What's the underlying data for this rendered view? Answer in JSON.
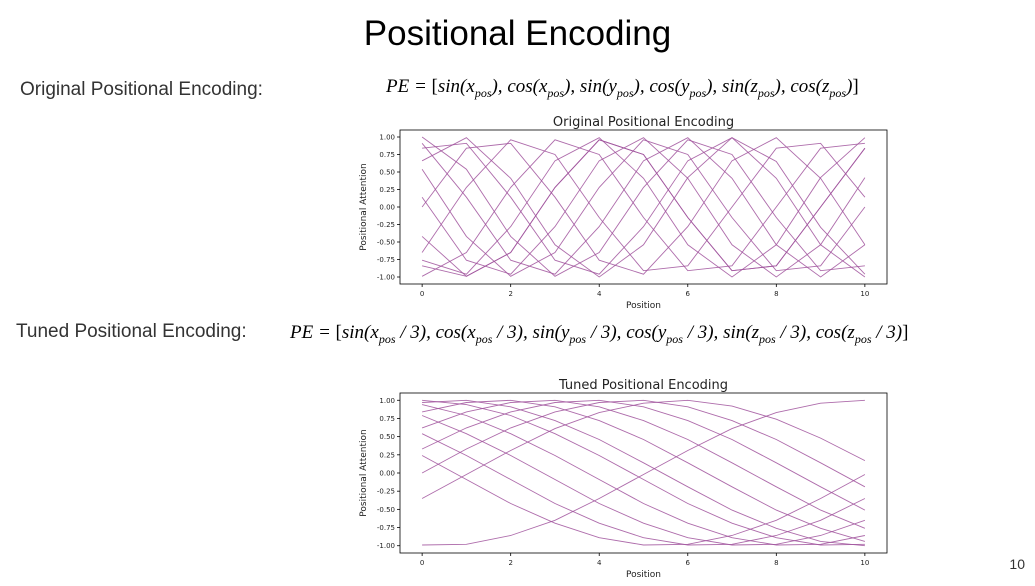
{
  "slide": {
    "title": "Positional Encoding",
    "original_label": "Original Positional Encoding:",
    "tuned_label": "Tuned Positional Encoding:",
    "page_number": "10"
  },
  "formulas": {
    "original": [
      {
        "t": "PE = ",
        "s": "i"
      },
      {
        "t": "[",
        "s": "n"
      },
      {
        "t": "sin(x",
        "s": "i"
      },
      {
        "t": "pos",
        "s": "sub"
      },
      {
        "t": "), ",
        "s": "i"
      },
      {
        "t": "cos(x",
        "s": "i"
      },
      {
        "t": "pos",
        "s": "sub"
      },
      {
        "t": "), ",
        "s": "i"
      },
      {
        "t": "sin(y",
        "s": "i"
      },
      {
        "t": "pos",
        "s": "sub"
      },
      {
        "t": "), ",
        "s": "i"
      },
      {
        "t": "cos(y",
        "s": "i"
      },
      {
        "t": "pos",
        "s": "sub"
      },
      {
        "t": "), ",
        "s": "i"
      },
      {
        "t": "sin(z",
        "s": "i"
      },
      {
        "t": "pos",
        "s": "sub"
      },
      {
        "t": "), ",
        "s": "i"
      },
      {
        "t": "cos(z",
        "s": "i"
      },
      {
        "t": "pos",
        "s": "sub"
      },
      {
        "t": ")",
        "s": "i"
      },
      {
        "t": "]",
        "s": "n"
      }
    ],
    "tuned": [
      {
        "t": "PE = ",
        "s": "i"
      },
      {
        "t": "[",
        "s": "n"
      },
      {
        "t": "sin(x",
        "s": "i"
      },
      {
        "t": "pos",
        "s": "sub"
      },
      {
        "t": " / 3), ",
        "s": "i"
      },
      {
        "t": "cos(x",
        "s": "i"
      },
      {
        "t": "pos",
        "s": "sub"
      },
      {
        "t": " / 3), ",
        "s": "i"
      },
      {
        "t": "sin(y",
        "s": "i"
      },
      {
        "t": "pos",
        "s": "sub"
      },
      {
        "t": " / 3), ",
        "s": "i"
      },
      {
        "t": "cos(y",
        "s": "i"
      },
      {
        "t": "pos",
        "s": "sub"
      },
      {
        "t": " / 3), ",
        "s": "i"
      },
      {
        "t": "sin(z",
        "s": "i"
      },
      {
        "t": "pos",
        "s": "sub"
      },
      {
        "t": " / 3), ",
        "s": "i"
      },
      {
        "t": "cos(z",
        "s": "i"
      },
      {
        "t": "pos",
        "s": "sub"
      },
      {
        "t": " / 3)",
        "s": "i"
      },
      {
        "t": "]",
        "s": "n"
      }
    ]
  },
  "colors": {
    "line": "#a0529c",
    "axis": "#000000",
    "text": "#333333"
  },
  "chart_data": [
    {
      "type": "line",
      "title": "Original Positional Encoding",
      "xlabel": "Position",
      "ylabel": "Positional Attention",
      "x": [
        0,
        1,
        2,
        3,
        4,
        5,
        6,
        7,
        8,
        9,
        10
      ],
      "xlim": [
        -0.5,
        10.5
      ],
      "ylim": [
        -1.1,
        1.1
      ],
      "xticks": [
        "0",
        "2",
        "4",
        "6",
        "8",
        "10"
      ],
      "xtick_values": [
        0,
        2,
        4,
        6,
        8,
        10
      ],
      "yticks": [
        "1.00",
        "0.75",
        "0.50",
        "0.25",
        "0.00",
        "-0.25",
        "-0.50",
        "-0.75",
        "-1.00"
      ],
      "ytick_values": [
        1.0,
        0.75,
        0.5,
        0.25,
        0.0,
        -0.25,
        -0.5,
        -0.75,
        -1.0
      ],
      "grid": false,
      "series": [
        {
          "values": [
            0.0,
            0.84,
            0.91,
            0.14,
            -0.76,
            -0.96,
            -0.28,
            0.66,
            0.99,
            0.41,
            -0.54
          ]
        },
        {
          "values": [
            1.0,
            0.54,
            -0.42,
            -0.99,
            -0.65,
            0.28,
            0.96,
            0.75,
            -0.15,
            -0.91,
            -0.84
          ]
        },
        {
          "values": [
            0.84,
            0.91,
            0.14,
            -0.76,
            -0.96,
            -0.28,
            0.66,
            0.99,
            0.41,
            -0.54,
            -1.0
          ]
        },
        {
          "values": [
            0.54,
            -0.42,
            -0.99,
            -0.65,
            0.28,
            0.96,
            0.75,
            -0.15,
            -0.91,
            -0.84,
            0.0
          ]
        },
        {
          "values": [
            0.91,
            0.14,
            -0.76,
            -0.96,
            -0.28,
            0.66,
            0.99,
            0.41,
            -0.54,
            -1.0,
            -0.54
          ]
        },
        {
          "values": [
            -0.42,
            -0.99,
            -0.65,
            0.28,
            0.96,
            0.75,
            -0.15,
            -0.91,
            -0.84,
            0.0,
            0.84
          ]
        },
        {
          "values": [
            0.14,
            -0.76,
            -0.96,
            -0.28,
            0.66,
            0.99,
            0.41,
            -0.54,
            -1.0,
            -0.54,
            0.42
          ]
        },
        {
          "values": [
            -0.99,
            -0.65,
            0.28,
            0.96,
            0.75,
            -0.15,
            -0.91,
            -0.84,
            0.0,
            0.84,
            0.91
          ]
        },
        {
          "values": [
            -0.76,
            -0.96,
            -0.28,
            0.66,
            0.99,
            0.41,
            -0.54,
            -1.0,
            -0.54,
            0.42,
            0.99
          ]
        },
        {
          "values": [
            -0.65,
            0.28,
            0.96,
            0.75,
            -0.15,
            -0.91,
            -0.84,
            0.0,
            0.84,
            0.91,
            0.14
          ]
        },
        {
          "values": [
            0.66,
            0.99,
            0.41,
            -0.54,
            -1.0,
            -0.54,
            0.42,
            0.99,
            0.65,
            -0.29,
            -0.96
          ]
        },
        {
          "values": [
            -0.84,
            -0.99,
            -0.65,
            0.28,
            0.96,
            0.75,
            -0.15,
            -0.91,
            -0.84,
            0.0,
            0.84
          ]
        }
      ]
    },
    {
      "type": "line",
      "title": "Tuned Positional Encoding",
      "xlabel": "Position",
      "ylabel": "Positional Attention",
      "x": [
        0,
        1,
        2,
        3,
        4,
        5,
        6,
        7,
        8,
        9,
        10
      ],
      "xlim": [
        -0.5,
        10.5
      ],
      "ylim": [
        -1.1,
        1.1
      ],
      "xticks": [
        "0",
        "2",
        "4",
        "6",
        "8",
        "10"
      ],
      "xtick_values": [
        0,
        2,
        4,
        6,
        8,
        10
      ],
      "yticks": [
        "1.00",
        "0.75",
        "0.50",
        "0.25",
        "0.00",
        "-0.25",
        "-0.50",
        "-0.75",
        "-1.00"
      ],
      "ytick_values": [
        1.0,
        0.75,
        0.5,
        0.25,
        0.0,
        -0.25,
        -0.5,
        -0.75,
        -1.0
      ],
      "grid": false,
      "series": [
        {
          "values": [
            0.0,
            0.33,
            0.62,
            0.84,
            0.97,
            1.0,
            0.91,
            0.72,
            0.46,
            0.14,
            -0.19
          ]
        },
        {
          "values": [
            1.0,
            0.94,
            0.79,
            0.54,
            0.24,
            -0.09,
            -0.42,
            -0.69,
            -0.89,
            -0.99,
            -0.98
          ]
        },
        {
          "values": [
            0.33,
            0.62,
            0.84,
            0.97,
            1.0,
            0.91,
            0.72,
            0.46,
            0.14,
            -0.19,
            -0.51
          ]
        },
        {
          "values": [
            0.94,
            0.79,
            0.54,
            0.24,
            -0.09,
            -0.42,
            -0.69,
            -0.89,
            -0.99,
            -0.98,
            -0.86
          ]
        },
        {
          "values": [
            0.62,
            0.84,
            0.97,
            1.0,
            0.91,
            0.72,
            0.46,
            0.14,
            -0.19,
            -0.51,
            -0.76
          ]
        },
        {
          "values": [
            0.79,
            0.54,
            0.24,
            -0.09,
            -0.42,
            -0.69,
            -0.89,
            -0.99,
            -0.98,
            -0.86,
            -0.65
          ]
        },
        {
          "values": [
            0.84,
            0.97,
            1.0,
            0.91,
            0.72,
            0.46,
            0.14,
            -0.19,
            -0.51,
            -0.76,
            -0.94
          ]
        },
        {
          "values": [
            0.54,
            0.24,
            -0.09,
            -0.42,
            -0.69,
            -0.89,
            -0.99,
            -0.98,
            -0.86,
            -0.65,
            -0.35
          ]
        },
        {
          "values": [
            0.97,
            1.0,
            0.91,
            0.72,
            0.46,
            0.14,
            -0.19,
            -0.51,
            -0.76,
            -0.94,
            -1.0
          ]
        },
        {
          "values": [
            0.24,
            -0.09,
            -0.42,
            -0.69,
            -0.89,
            -0.99,
            -0.98,
            -0.86,
            -0.65,
            -0.35,
            -0.02
          ]
        },
        {
          "values": [
            -0.99,
            -0.98,
            -0.86,
            -0.65,
            -0.35,
            -0.02,
            0.31,
            0.61,
            0.83,
            0.96,
            1.0
          ]
        },
        {
          "values": [
            -0.35,
            -0.02,
            0.31,
            0.61,
            0.83,
            0.96,
            1.0,
            0.92,
            0.74,
            0.48,
            0.17
          ]
        }
      ]
    }
  ]
}
